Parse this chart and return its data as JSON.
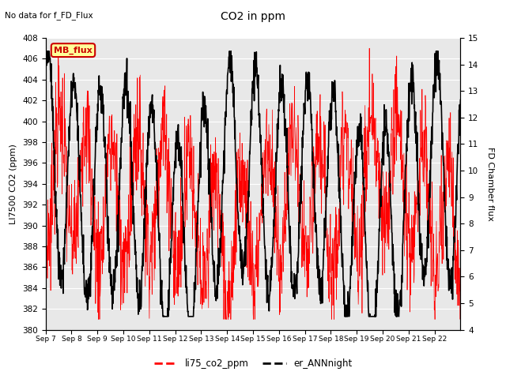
{
  "title": "CO2 in ppm",
  "top_text": "No data for f_FD_Flux",
  "ylabel_left": "LI7500 CO2 (ppm)",
  "ylabel_right": "FD Chamber flux",
  "ylim_left": [
    380,
    408
  ],
  "ylim_right": [
    4.0,
    15.0
  ],
  "yticks_left": [
    380,
    382,
    384,
    386,
    388,
    390,
    392,
    394,
    396,
    398,
    400,
    402,
    404,
    406,
    408
  ],
  "yticks_right": [
    4.0,
    5.0,
    6.0,
    7.0,
    8.0,
    9.0,
    10.0,
    11.0,
    12.0,
    13.0,
    14.0,
    15.0
  ],
  "xtick_labels": [
    "Sep 7",
    "Sep 8",
    "Sep 9",
    "Sep 10",
    "Sep 11",
    "Sep 12",
    "Sep 13",
    "Sep 14",
    "Sep 15",
    "Sep 16",
    "Sep 17",
    "Sep 18",
    "Sep 19",
    "Sep 20",
    "Sep 21",
    "Sep 22"
  ],
  "legend_entries": [
    "li75_co2_ppm",
    "er_ANNnight"
  ],
  "line1_color": "#ff0000",
  "line2_color": "#000000",
  "bg_color": "#e8e8e8",
  "annotation_box": {
    "text": "MB_flux",
    "facecolor": "#ffff99",
    "edgecolor": "#cc0000"
  },
  "n_days": 16,
  "points_per_day": 96,
  "figsize": [
    6.4,
    4.8
  ],
  "dpi": 100
}
